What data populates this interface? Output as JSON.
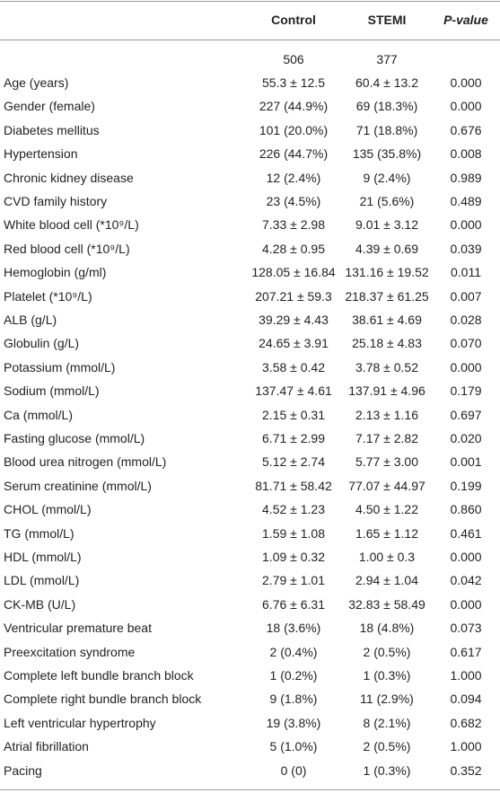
{
  "table": {
    "columns": [
      "Control",
      "STEMI",
      "P-value"
    ],
    "counts": [
      "506",
      "377"
    ],
    "rows": [
      [
        "Age (years)",
        "55.3 ± 12.5",
        "60.4 ± 13.2",
        "0.000"
      ],
      [
        "Gender (female)",
        "227 (44.9%)",
        "69 (18.3%)",
        "0.000"
      ],
      [
        "Diabetes mellitus",
        "101 (20.0%)",
        "71 (18.8%)",
        "0.676"
      ],
      [
        "Hypertension",
        "226 (44.7%)",
        "135 (35.8%)",
        "0.008"
      ],
      [
        "Chronic kidney disease",
        "12 (2.4%)",
        "9 (2.4%)",
        "0.989"
      ],
      [
        "CVD family history",
        "23 (4.5%)",
        "21 (5.6%)",
        "0.489"
      ],
      [
        "White blood cell (*10⁹/L)",
        "7.33 ± 2.98",
        "9.01 ± 3.12",
        "0.000"
      ],
      [
        "Red blood cell (*10⁹/L)",
        "4.28 ± 0.95",
        "4.39 ± 0.69",
        "0.039"
      ],
      [
        "Hemoglobin (g/ml)",
        "128.05 ± 16.84",
        "131.16 ± 19.52",
        "0.011"
      ],
      [
        "Platelet (*10⁹/L)",
        "207.21 ± 59.3",
        "218.37 ± 61.25",
        "0.007"
      ],
      [
        "ALB (g/L)",
        "39.29 ± 4.43",
        "38.61 ± 4.69",
        "0.028"
      ],
      [
        "Globulin (g/L)",
        "24.65 ± 3.91",
        "25.18 ± 4.83",
        "0.070"
      ],
      [
        "Potassium (mmol/L)",
        "3.58 ± 0.42",
        "3.78 ± 0.52",
        "0.000"
      ],
      [
        "Sodium (mmol/L)",
        "137.47 ± 4.61",
        "137.91 ± 4.96",
        "0.179"
      ],
      [
        "Ca (mmol/L)",
        "2.15 ± 0.31",
        "2.13 ± 1.16",
        "0.697"
      ],
      [
        "Fasting glucose (mmol/L)",
        "6.71 ± 2.99",
        "7.17 ± 2.82",
        "0.020"
      ],
      [
        "Blood urea nitrogen (mmol/L)",
        "5.12 ± 2.74",
        "5.77 ± 3.00",
        "0.001"
      ],
      [
        "Serum creatinine (mmol/L)",
        "81.71 ± 58.42",
        "77.07 ± 44.97",
        "0.199"
      ],
      [
        "CHOL (mmol/L)",
        "4.52 ± 1.23",
        "4.50 ± 1.22",
        "0.860"
      ],
      [
        "TG (mmol/L)",
        "1.59 ± 1.08",
        "1.65 ± 1.12",
        "0.461"
      ],
      [
        "HDL (mmol/L)",
        "1.09 ± 0.32",
        "1.00 ± 0.3",
        "0.000"
      ],
      [
        "LDL (mmol/L)",
        "2.79 ± 1.01",
        "2.94 ± 1.04",
        "0.042"
      ],
      [
        "CK-MB (U/L)",
        "6.76 ± 6.31",
        "32.83 ± 58.49",
        "0.000"
      ],
      [
        "Ventricular premature beat",
        "18 (3.6%)",
        "18 (4.8%)",
        "0.073"
      ],
      [
        "Preexcitation syndrome",
        "2 (0.4%)",
        "2 (0.5%)",
        "0.617"
      ],
      [
        "Complete left bundle branch block",
        "1 (0.2%)",
        "1 (0.3%)",
        "1.000"
      ],
      [
        "Complete right bundle branch block",
        "9 (1.8%)",
        "11 (2.9%)",
        "0.094"
      ],
      [
        "Left ventricular hypertrophy",
        "19 (3.8%)",
        "8 (2.1%)",
        "0.682"
      ],
      [
        "Atrial fibrillation",
        "5 (1.0%)",
        "2 (0.5%)",
        "1.000"
      ],
      [
        "Pacing",
        "0 (0)",
        "1 (0.3%)",
        "0.352"
      ]
    ]
  }
}
